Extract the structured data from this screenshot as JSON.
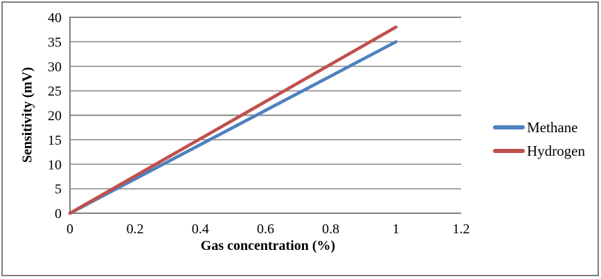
{
  "colors": {
    "gridline": "#878787",
    "axis_line": "#808080",
    "frame_border": "#7e7e7e",
    "text": "#000000",
    "background": "#ffffff"
  },
  "legend": {
    "items": [
      {
        "label": "Methane",
        "color": "#4F81BD"
      },
      {
        "label": "Hydrogen",
        "color": "#C0504D"
      }
    ],
    "position": "right"
  },
  "chart_data": {
    "type": "line",
    "title": "",
    "xlabel": "Gas concentration (%)",
    "ylabel": "Sensitivity (mV)",
    "xlim": [
      0,
      1.2
    ],
    "ylim": [
      0,
      40
    ],
    "grid": "horizontal",
    "legend_position": "right",
    "xticks": {
      "values": [
        0,
        0.2,
        0.4,
        0.6,
        0.8,
        1,
        1.2
      ],
      "labels": [
        "0",
        "0.2",
        "0.4",
        "0.6",
        "0.8",
        "1",
        "1.2"
      ]
    },
    "yticks": {
      "values": [
        0,
        5,
        10,
        15,
        20,
        25,
        30,
        35,
        40
      ],
      "labels": [
        "0",
        "5",
        "10",
        "15",
        "20",
        "25",
        "30",
        "35",
        "40"
      ]
    },
    "x": [
      0,
      1
    ],
    "series": [
      {
        "name": "Methane",
        "color": "#4F81BD",
        "values": [
          0,
          35
        ]
      },
      {
        "name": "Hydrogen",
        "color": "#C0504D",
        "values": [
          0,
          38
        ]
      }
    ]
  }
}
